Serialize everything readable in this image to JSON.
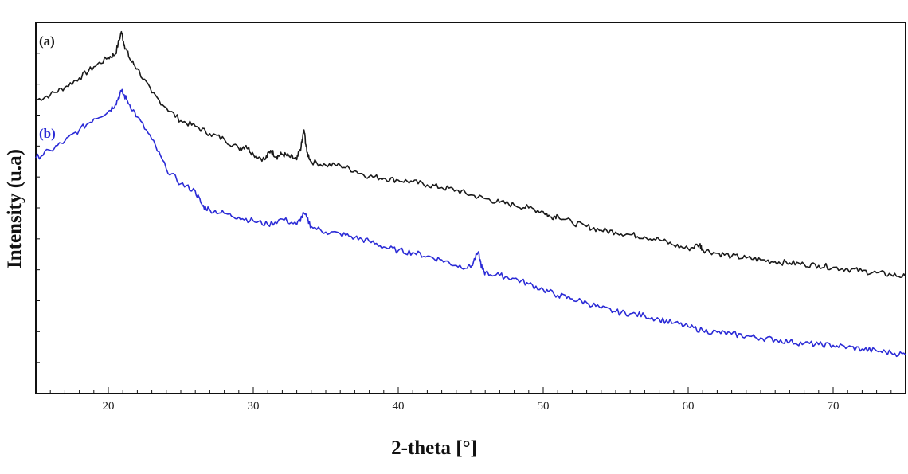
{
  "chart_data": {
    "type": "line",
    "title": "",
    "xlabel": "2-theta [°]",
    "ylabel": "Intensity (u.a)",
    "xlim": [
      15,
      75
    ],
    "ylim": [
      0,
      100
    ],
    "x_ticks": [
      20,
      30,
      40,
      50,
      60,
      70
    ],
    "grid": false,
    "legend": "none",
    "series": [
      {
        "name": "(a)",
        "color": "#1a1a1a",
        "points": [
          [
            15.0,
            79.0
          ],
          [
            16.0,
            80.5
          ],
          [
            17.0,
            82.5
          ],
          [
            18.0,
            85.0
          ],
          [
            19.0,
            88.0
          ],
          [
            20.0,
            90.5
          ],
          [
            20.5,
            91.5
          ],
          [
            20.9,
            97.5
          ],
          [
            21.1,
            94.0
          ],
          [
            21.5,
            90.0
          ],
          [
            22.0,
            87.5
          ],
          [
            23.0,
            81.0
          ],
          [
            24.0,
            77.0
          ],
          [
            25.0,
            73.5
          ],
          [
            26.0,
            72.0
          ],
          [
            27.0,
            70.0
          ],
          [
            28.0,
            68.5
          ],
          [
            29.0,
            66.0
          ],
          [
            29.5,
            66.8
          ],
          [
            30.0,
            64.5
          ],
          [
            30.8,
            63.0
          ],
          [
            31.2,
            65.5
          ],
          [
            31.6,
            63.8
          ],
          [
            32.0,
            64.5
          ],
          [
            32.5,
            63.8
          ],
          [
            33.0,
            63.0
          ],
          [
            33.3,
            66.5
          ],
          [
            33.5,
            71.0
          ],
          [
            33.7,
            65.0
          ],
          [
            34.0,
            62.5
          ],
          [
            35.0,
            61.5
          ],
          [
            36.0,
            61.5
          ],
          [
            37.0,
            60.0
          ],
          [
            38.0,
            58.5
          ],
          [
            39.0,
            58.0
          ],
          [
            40.0,
            57.5
          ],
          [
            41.0,
            57.0
          ],
          [
            42.0,
            56.2
          ],
          [
            43.0,
            55.5
          ],
          [
            44.0,
            54.8
          ],
          [
            45.0,
            53.5
          ],
          [
            46.0,
            52.5
          ],
          [
            47.0,
            51.5
          ],
          [
            48.0,
            50.8
          ],
          [
            49.0,
            50.0
          ],
          [
            50.0,
            49.0
          ],
          [
            50.5,
            47.5
          ],
          [
            51.0,
            48.0
          ],
          [
            52.0,
            46.0
          ],
          [
            53.0,
            45.0
          ],
          [
            54.0,
            44.0
          ],
          [
            55.0,
            43.5
          ],
          [
            56.0,
            42.8
          ],
          [
            57.0,
            42.2
          ],
          [
            58.0,
            41.5
          ],
          [
            59.0,
            40.0
          ],
          [
            60.0,
            39.0
          ],
          [
            60.8,
            40.2
          ],
          [
            61.0,
            38.8
          ],
          [
            62.0,
            37.8
          ],
          [
            63.0,
            37.0
          ],
          [
            64.0,
            36.5
          ],
          [
            65.0,
            36.0
          ],
          [
            66.0,
            35.5
          ],
          [
            67.0,
            35.2
          ],
          [
            68.0,
            34.8
          ],
          [
            69.0,
            34.5
          ],
          [
            70.0,
            34.0
          ],
          [
            71.0,
            33.5
          ],
          [
            72.0,
            33.0
          ],
          [
            73.0,
            32.5
          ],
          [
            74.0,
            32.0
          ],
          [
            75.0,
            31.5
          ]
        ]
      },
      {
        "name": "(b)",
        "color": "#2b2bd6",
        "points": [
          [
            15.0,
            63.5
          ],
          [
            16.0,
            65.5
          ],
          [
            17.0,
            68.0
          ],
          [
            18.0,
            71.0
          ],
          [
            19.0,
            74.0
          ],
          [
            20.0,
            76.0
          ],
          [
            20.5,
            78.0
          ],
          [
            20.9,
            81.5
          ],
          [
            21.3,
            79.0
          ],
          [
            22.0,
            74.5
          ],
          [
            23.0,
            68.5
          ],
          [
            24.0,
            60.5
          ],
          [
            25.0,
            56.5
          ],
          [
            26.0,
            54.5
          ],
          [
            26.5,
            50.5
          ],
          [
            27.0,
            49.5
          ],
          [
            28.0,
            48.5
          ],
          [
            29.0,
            47.5
          ],
          [
            30.0,
            46.5
          ],
          [
            31.0,
            45.5
          ],
          [
            32.0,
            47.0
          ],
          [
            33.0,
            45.5
          ],
          [
            33.5,
            48.5
          ],
          [
            34.0,
            45.0
          ],
          [
            35.0,
            43.5
          ],
          [
            36.0,
            43.0
          ],
          [
            37.0,
            42.0
          ],
          [
            38.0,
            41.0
          ],
          [
            39.0,
            39.5
          ],
          [
            40.0,
            38.5
          ],
          [
            41.0,
            38.0
          ],
          [
            42.0,
            37.0
          ],
          [
            43.0,
            36.0
          ],
          [
            44.0,
            34.5
          ],
          [
            45.0,
            34.0
          ],
          [
            45.5,
            38.0
          ],
          [
            45.8,
            33.5
          ],
          [
            46.0,
            32.5
          ],
          [
            47.0,
            31.8
          ],
          [
            48.0,
            31.0
          ],
          [
            49.0,
            29.5
          ],
          [
            50.0,
            28.0
          ],
          [
            51.0,
            26.5
          ],
          [
            52.0,
            25.5
          ],
          [
            53.0,
            24.5
          ],
          [
            54.0,
            23.0
          ],
          [
            55.0,
            22.0
          ],
          [
            56.0,
            21.5
          ],
          [
            57.0,
            21.0
          ],
          [
            58.0,
            20.0
          ],
          [
            59.0,
            19.0
          ],
          [
            60.0,
            18.0
          ],
          [
            61.0,
            17.0
          ],
          [
            62.0,
            16.5
          ],
          [
            63.0,
            16.0
          ],
          [
            64.0,
            15.5
          ],
          [
            65.0,
            15.0
          ],
          [
            66.0,
            14.5
          ],
          [
            67.0,
            14.0
          ],
          [
            68.0,
            13.5
          ],
          [
            69.0,
            13.2
          ],
          [
            70.0,
            13.0
          ],
          [
            71.0,
            12.5
          ],
          [
            72.0,
            12.0
          ],
          [
            73.0,
            11.5
          ],
          [
            74.0,
            11.0
          ],
          [
            75.0,
            10.5
          ]
        ]
      }
    ]
  }
}
